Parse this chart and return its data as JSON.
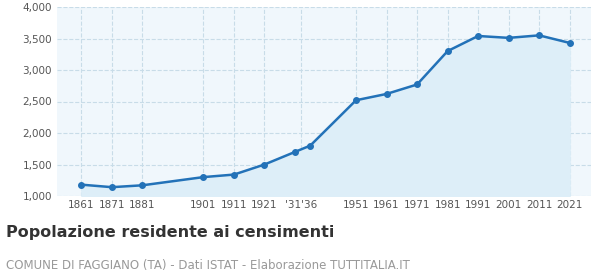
{
  "years": [
    1861,
    1871,
    1881,
    1901,
    1911,
    1921,
    1931,
    1936,
    1951,
    1961,
    1971,
    1981,
    1991,
    2001,
    2011,
    2021
  ],
  "population": [
    1180,
    1140,
    1170,
    1300,
    1340,
    1500,
    1700,
    1800,
    2520,
    2620,
    2770,
    3300,
    3540,
    3510,
    3550,
    3430
  ],
  "custom_tick_years": [
    1861,
    1871,
    1881,
    1901,
    1911,
    1921,
    1933,
    1951,
    1961,
    1971,
    1981,
    1991,
    2001,
    2011,
    2021
  ],
  "custom_tick_labels": [
    "1861",
    "1871",
    "1881",
    "1901",
    "1911",
    "1921",
    "'31'36",
    "1951",
    "1961",
    "1971",
    "1981",
    "1991",
    "2001",
    "2011",
    "2021"
  ],
  "ylim": [
    1000,
    4000
  ],
  "yticks": [
    1000,
    1500,
    2000,
    2500,
    3000,
    3500,
    4000
  ],
  "xlim_min": 1853,
  "xlim_max": 2028,
  "line_color": "#2372b8",
  "fill_color": "#ddeef8",
  "marker_color": "#2372b8",
  "bg_color": "#f0f7fc",
  "grid_color": "#c8dce8",
  "title": "Popolazione residente ai censimenti",
  "subtitle": "COMUNE DI FAGGIANO (TA) - Dati ISTAT - Elaborazione TUTTITALIA.IT",
  "title_fontsize": 11.5,
  "subtitle_fontsize": 8.5,
  "tick_fontsize": 7.5
}
